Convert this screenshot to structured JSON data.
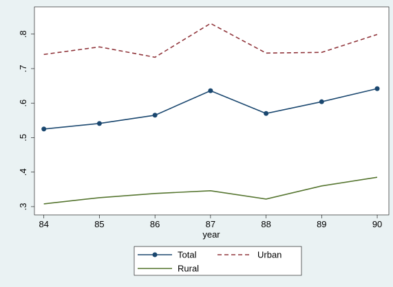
{
  "chart_data": {
    "type": "line",
    "xlabel": "year",
    "x": [
      84,
      85,
      86,
      87,
      88,
      89,
      90
    ],
    "series": [
      {
        "name": "Total",
        "color": "#1a476f",
        "dash": false,
        "markers": true,
        "values": [
          0.525,
          0.541,
          0.565,
          0.636,
          0.57,
          0.604,
          0.642
        ]
      },
      {
        "name": "Urban",
        "color": "#90353b",
        "dash": true,
        "markers": false,
        "values": [
          0.741,
          0.763,
          0.733,
          0.831,
          0.745,
          0.747,
          0.799
        ]
      },
      {
        "name": "Rural",
        "color": "#55752f",
        "dash": false,
        "markers": false,
        "values": [
          0.308,
          0.326,
          0.338,
          0.346,
          0.322,
          0.36,
          0.385
        ]
      }
    ],
    "xlim": [
      83.83,
      90.21
    ],
    "xticks": [
      84,
      85,
      86,
      87,
      88,
      89,
      90
    ],
    "ylim": [
      0.276,
      0.879
    ],
    "yticks": [
      {
        "value": 0.3,
        "label": ".3"
      },
      {
        "value": 0.4,
        "label": ".4"
      },
      {
        "value": 0.5,
        "label": ".5"
      },
      {
        "value": 0.6,
        "label": ".6"
      },
      {
        "value": 0.7,
        "label": ".7"
      },
      {
        "value": 0.8,
        "label": ".8"
      }
    ],
    "grid": false
  }
}
